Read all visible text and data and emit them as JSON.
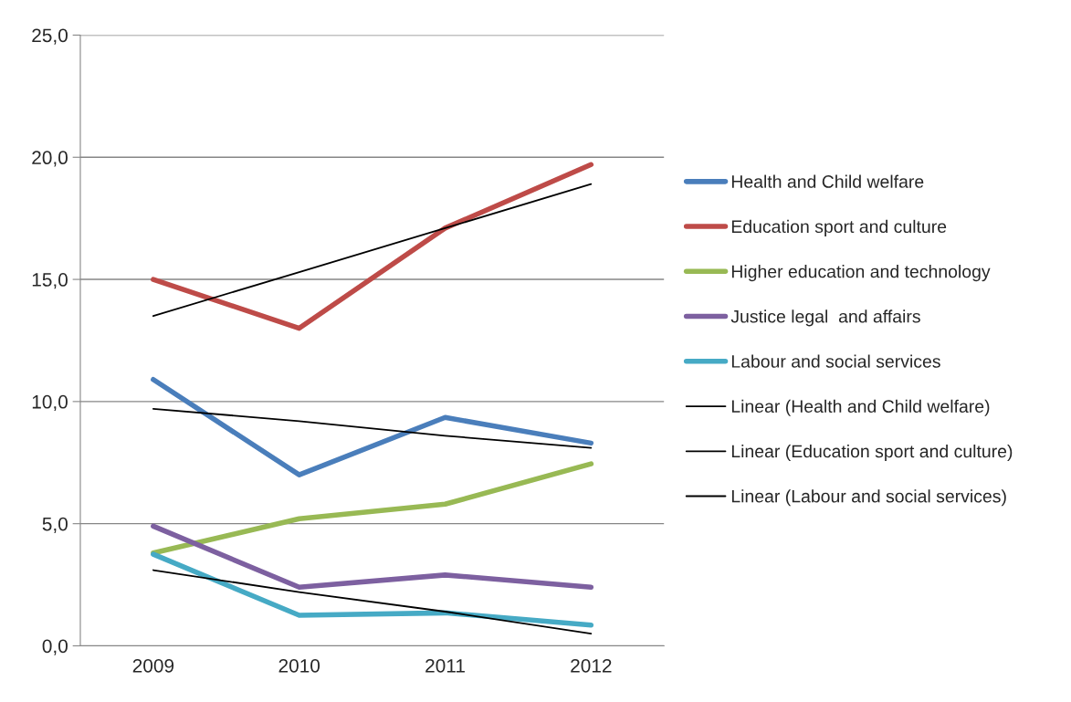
{
  "chart_data": {
    "type": "line",
    "categories": [
      "2009",
      "2010",
      "2011",
      "2012"
    ],
    "series": [
      {
        "name": "Health and Child welfare",
        "color": "#4a7ebb",
        "values": [
          10.9,
          7.0,
          9.35,
          8.3
        ]
      },
      {
        "name": "Education sport and culture",
        "color": "#be4b48",
        "values": [
          15.0,
          13.0,
          17.1,
          19.7
        ]
      },
      {
        "name": "Higher education and technology",
        "color": "#98b954",
        "values": [
          3.8,
          5.2,
          5.8,
          7.45
        ]
      },
      {
        "name": "Justice legal  and affairs",
        "color": "#7d60a0",
        "values": [
          4.9,
          2.4,
          2.9,
          2.4
        ]
      },
      {
        "name": "Labour and social services",
        "color": "#46aac5",
        "values": [
          3.75,
          1.25,
          1.35,
          0.85
        ]
      },
      {
        "name": "Linear (Health and Child welfare)",
        "color": "#000000",
        "type": "line",
        "values": [
          9.7,
          9.2,
          8.6,
          8.1
        ]
      },
      {
        "name": "Linear (Education sport and culture)",
        "color": "#000000",
        "type": "line",
        "values": [
          13.5,
          15.3,
          17.1,
          18.9
        ]
      },
      {
        "name": "Linear (Labour and social services)",
        "color": "#000000",
        "type": "line",
        "values": [
          3.1,
          2.2,
          1.4,
          0.5
        ]
      }
    ],
    "ylim": [
      0,
      25
    ],
    "yticks": [
      {
        "value": 0,
        "label": "0,0"
      },
      {
        "value": 5,
        "label": "5,0"
      },
      {
        "value": 10,
        "label": "10,0"
      },
      {
        "value": 15,
        "label": "15,0"
      },
      {
        "value": 20,
        "label": "20,0"
      },
      {
        "value": 25,
        "label": "25,0"
      }
    ],
    "grid": "y",
    "legend": "right",
    "marker": "none",
    "line_style": "solid"
  }
}
